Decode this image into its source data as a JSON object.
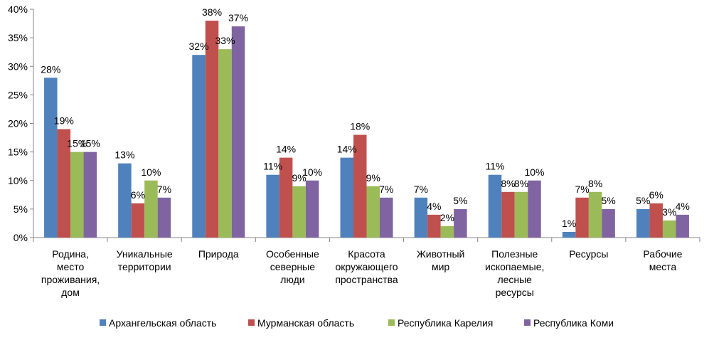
{
  "chart_data": {
    "type": "bar",
    "title": "",
    "xlabel": "",
    "ylabel": "",
    "ylim": [
      0,
      40
    ],
    "y_ticks": [
      "0%",
      "5%",
      "10%",
      "15%",
      "20%",
      "25%",
      "30%",
      "35%",
      "40%"
    ],
    "value_suffix": "%",
    "grid": false,
    "legend_position": "bottom",
    "categories": [
      [
        "Родина,",
        "место",
        "проживания,",
        "дом"
      ],
      [
        "Уникальные",
        "территории"
      ],
      [
        "Природа"
      ],
      [
        "Особенные",
        "северные",
        "люди"
      ],
      [
        "Красота",
        "окружающего",
        "пространства"
      ],
      [
        "Животный",
        "мир"
      ],
      [
        "Полезные",
        "ископаемые,",
        "лесные",
        "ресурсы"
      ],
      [
        "Ресурсы"
      ],
      [
        "Рабочие",
        "места"
      ]
    ],
    "series": [
      {
        "name": "Архангельская область",
        "color": "#4F81BD",
        "values": [
          28,
          13,
          32,
          11,
          14,
          7,
          11,
          1,
          5
        ]
      },
      {
        "name": "Мурманская область",
        "color": "#C0504D",
        "values": [
          19,
          6,
          38,
          14,
          18,
          4,
          8,
          7,
          6
        ]
      },
      {
        "name": "Республика Карелия",
        "color": "#9BBB59",
        "values": [
          15,
          10,
          33,
          9,
          9,
          2,
          8,
          8,
          3
        ]
      },
      {
        "name": "Республика Коми",
        "color": "#8064A2",
        "values": [
          15,
          7,
          37,
          10,
          7,
          5,
          10,
          5,
          4
        ]
      }
    ]
  }
}
